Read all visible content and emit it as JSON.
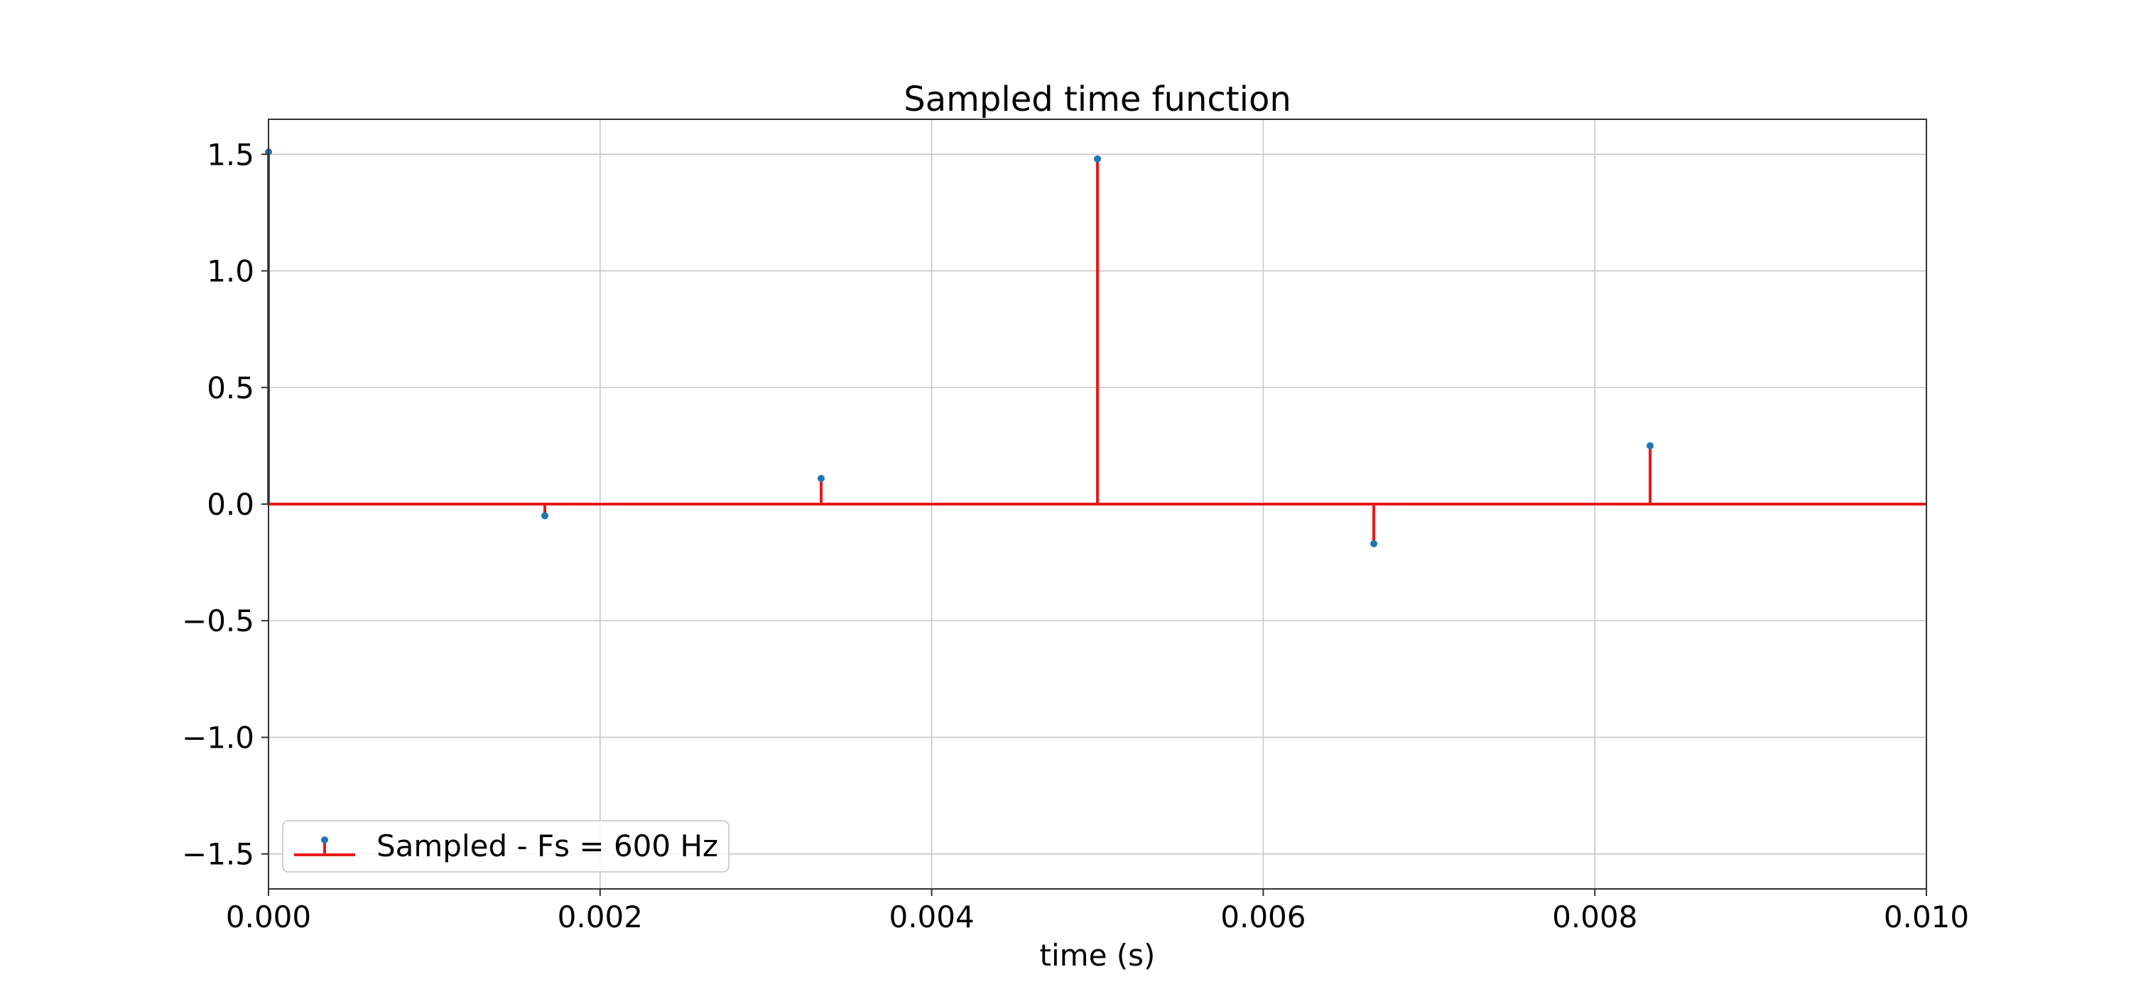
{
  "chart_data": {
    "type": "stem",
    "title": "Sampled time function",
    "xlabel": "time (s)",
    "ylabel": "",
    "xlim": [
      0.0,
      0.01
    ],
    "ylim": [
      -1.65,
      1.65
    ],
    "x_ticks": [
      0.0,
      0.002,
      0.004,
      0.006,
      0.008,
      0.01
    ],
    "x_tick_labels": [
      "0.000",
      "0.002",
      "0.004",
      "0.006",
      "0.008",
      "0.010"
    ],
    "y_ticks": [
      -1.5,
      -1.0,
      -0.5,
      0.0,
      0.5,
      1.0,
      1.5
    ],
    "y_tick_labels": [
      "−1.5",
      "−1.0",
      "−0.5",
      "0.0",
      "0.5",
      "1.0",
      "1.5"
    ],
    "grid": true,
    "legend_position": "lower-left",
    "series": [
      {
        "name": "Sampled - Fs = 600 Hz",
        "stem_color": "#e8191b",
        "marker_color": "#1f77b4",
        "baseline_color": "#e8191b",
        "x": [
          0.0,
          0.0016667,
          0.0033333,
          0.005,
          0.0066667,
          0.0083333
        ],
        "y": [
          1.51,
          -0.05,
          0.11,
          1.48,
          -0.17,
          0.25
        ]
      }
    ]
  }
}
